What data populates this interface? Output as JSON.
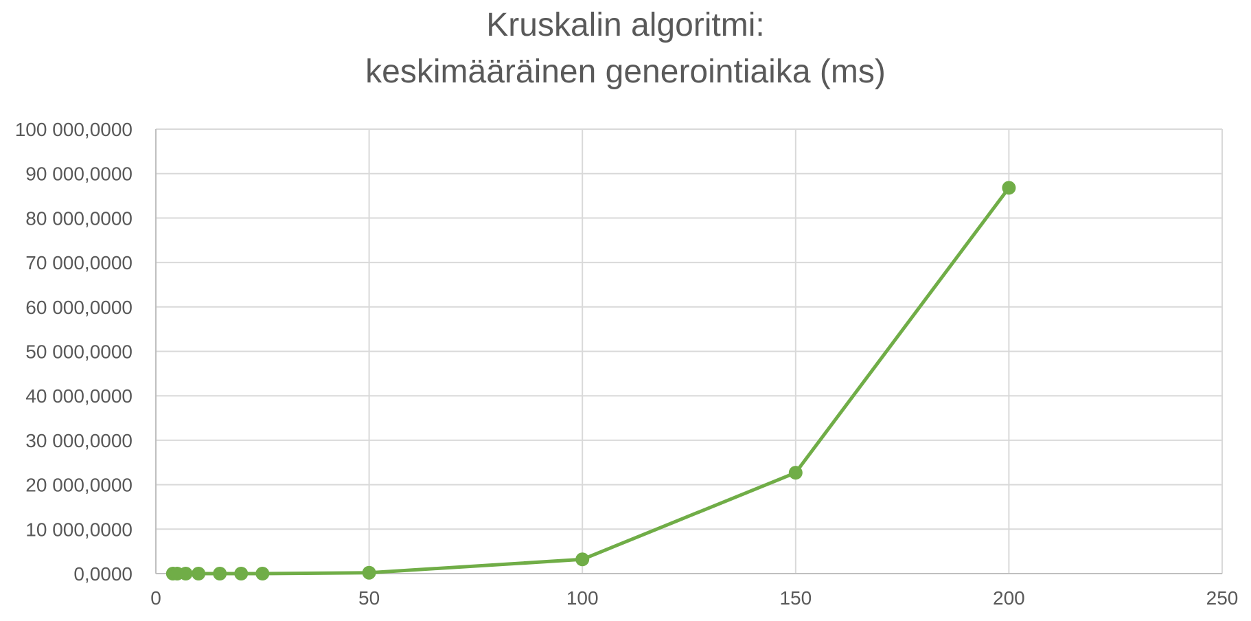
{
  "chart_data": {
    "type": "scatter",
    "title": [
      "Kruskalin algoritmi:",
      "keskimääräinen generointiaika (ms)"
    ],
    "xlabel": "",
    "ylabel": "",
    "xlim": [
      0,
      250
    ],
    "ylim": [
      0,
      100000000
    ],
    "x_ticks": [
      0,
      50,
      100,
      150,
      200,
      250
    ],
    "x_tick_labels": [
      "0",
      "50",
      "100",
      "150",
      "200",
      "250"
    ],
    "y_ticks": [
      0,
      10000000,
      20000000,
      30000000,
      40000000,
      50000000,
      60000000,
      70000000,
      80000000,
      90000000,
      100000000
    ],
    "y_tick_labels": [
      "0,0000",
      "10 000,0000",
      "20 000,0000",
      "30 000,0000",
      "40 000,0000",
      "50 000,0000",
      "60 000,0000",
      "70 000,0000",
      "80 000,0000",
      "90 000,0000",
      "100 000,0000"
    ],
    "grid": true,
    "legend": "none",
    "series": [
      {
        "color": "#70ad47",
        "line": true,
        "markers": true,
        "x": [
          4,
          5,
          7,
          10,
          15,
          20,
          25,
          50,
          100,
          150,
          200
        ],
        "y": [
          0,
          0,
          0,
          0,
          0,
          0,
          0,
          200000,
          3200000,
          22700000,
          86800000
        ]
      }
    ]
  }
}
